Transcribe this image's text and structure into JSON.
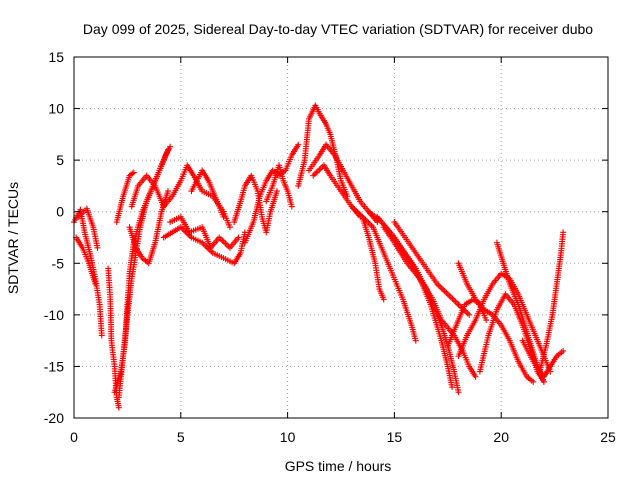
{
  "chart_data": {
    "type": "scatter",
    "title": "Day 099 of 2025, Sidereal Day-to-day VTEC variation (SDTVAR) for receiver dubo",
    "xlabel": "GPS time / hours",
    "ylabel": "SDTVAR / TECUs",
    "xlim": [
      0,
      25
    ],
    "ylim": [
      -20,
      15
    ],
    "xticks": [
      0,
      5,
      10,
      15,
      20,
      25
    ],
    "yticks": [
      -20,
      -15,
      -10,
      -5,
      0,
      5,
      10,
      15
    ],
    "grid": true,
    "marker": "plus",
    "series": [
      {
        "name": "SDTVAR",
        "color": "#ff0000",
        "tracks": [
          [
            [
              0.0,
              -1.0
            ],
            [
              0.3,
              0.2
            ],
            [
              0.5,
              -2.0
            ],
            [
              0.8,
              -4.5
            ],
            [
              1.0,
              -6.5
            ],
            [
              1.2,
              -9.0
            ],
            [
              1.3,
              -12.0
            ]
          ],
          [
            [
              0.2,
              -0.5
            ],
            [
              0.6,
              0.3
            ],
            [
              0.9,
              -1.5
            ],
            [
              1.1,
              -3.5
            ]
          ],
          [
            [
              0.1,
              -2.5
            ],
            [
              0.4,
              -3.5
            ],
            [
              0.7,
              -5.0
            ],
            [
              1.0,
              -7.0
            ]
          ],
          [
            [
              1.6,
              -5.5
            ],
            [
              1.7,
              -8.5
            ],
            [
              1.75,
              -12.5
            ],
            [
              1.9,
              -15.0
            ],
            [
              2.0,
              -18.0
            ],
            [
              2.1,
              -19.0
            ]
          ],
          [
            [
              1.9,
              -17.5
            ],
            [
              2.2,
              -15.5
            ],
            [
              2.4,
              -12.5
            ],
            [
              2.5,
              -9.0
            ],
            [
              2.6,
              -6.0
            ],
            [
              2.8,
              -3.0
            ],
            [
              3.2,
              0.0
            ],
            [
              3.6,
              2.0
            ],
            [
              4.0,
              4.0
            ],
            [
              4.3,
              5.5
            ],
            [
              4.5,
              6.3
            ]
          ],
          [
            [
              2.1,
              -18.0
            ],
            [
              2.3,
              -14.0
            ],
            [
              2.5,
              -10.0
            ],
            [
              2.7,
              -6.5
            ],
            [
              2.9,
              -4.0
            ],
            [
              3.1,
              -1.5
            ],
            [
              3.4,
              1.0
            ],
            [
              3.8,
              3.0
            ],
            [
              4.2,
              5.0
            ],
            [
              4.4,
              6.0
            ]
          ],
          [
            [
              2.0,
              -1.0
            ],
            [
              2.3,
              1.5
            ],
            [
              2.6,
              3.5
            ],
            [
              2.8,
              3.8
            ]
          ],
          [
            [
              2.6,
              -1.5
            ],
            [
              2.9,
              -3.5
            ],
            [
              3.2,
              -4.5
            ],
            [
              3.5,
              -5.0
            ],
            [
              3.8,
              -3.0
            ],
            [
              4.1,
              0.0
            ],
            [
              4.4,
              2.0
            ]
          ],
          [
            [
              2.7,
              0.5
            ],
            [
              3.0,
              2.5
            ],
            [
              3.4,
              3.5
            ],
            [
              3.8,
              2.5
            ],
            [
              4.2,
              0.5
            ],
            [
              4.6,
              1.5
            ],
            [
              5.0,
              3.0
            ],
            [
              5.3,
              4.5
            ],
            [
              5.6,
              3.5
            ],
            [
              6.0,
              2.0
            ],
            [
              6.5,
              1.5
            ],
            [
              7.0,
              0.0
            ],
            [
              7.3,
              -1.5
            ]
          ],
          [
            [
              4.2,
              -2.5
            ],
            [
              4.6,
              -2.0
            ],
            [
              5.0,
              -1.5
            ],
            [
              5.5,
              -2.5
            ],
            [
              6.0,
              -3.0
            ],
            [
              6.5,
              -4.0
            ],
            [
              7.0,
              -4.5
            ],
            [
              7.5,
              -5.0
            ],
            [
              7.8,
              -4.0
            ],
            [
              8.0,
              -2.0
            ]
          ],
          [
            [
              4.5,
              -1.0
            ],
            [
              5.0,
              -0.5
            ],
            [
              5.4,
              -2.0
            ],
            [
              6.0,
              -1.5
            ],
            [
              6.4,
              -3.5
            ],
            [
              6.8,
              -2.5
            ],
            [
              7.3,
              -3.5
            ],
            [
              7.7,
              -2.5
            ]
          ],
          [
            [
              5.5,
              2.0
            ],
            [
              6.0,
              4.0
            ],
            [
              6.3,
              3.0
            ],
            [
              6.7,
              1.0
            ],
            [
              7.0,
              -0.5
            ]
          ],
          [
            [
              7.5,
              -1.0
            ],
            [
              7.8,
              1.0
            ],
            [
              8.0,
              2.5
            ],
            [
              8.3,
              3.5
            ],
            [
              8.6,
              2.0
            ],
            [
              8.8,
              -0.5
            ],
            [
              9.0,
              -2.0
            ],
            [
              9.2,
              0.0
            ],
            [
              9.5,
              2.0
            ]
          ],
          [
            [
              8.0,
              -3.0
            ],
            [
              8.4,
              -1.0
            ],
            [
              8.7,
              1.5
            ],
            [
              9.0,
              3.0
            ],
            [
              9.3,
              4.0
            ],
            [
              9.6,
              3.5
            ],
            [
              9.9,
              4.0
            ],
            [
              10.2,
              5.5
            ],
            [
              10.5,
              6.5
            ]
          ],
          [
            [
              9.0,
              1.0
            ],
            [
              9.3,
              2.5
            ],
            [
              9.6,
              4.5
            ],
            [
              9.8,
              3.0
            ],
            [
              10.0,
              2.0
            ],
            [
              10.2,
              0.5
            ]
          ],
          [
            [
              10.5,
              2.5
            ],
            [
              10.8,
              5.0
            ],
            [
              11.0,
              9.0
            ],
            [
              11.3,
              10.3
            ],
            [
              11.5,
              9.5
            ],
            [
              11.8,
              8.5
            ],
            [
              12.0,
              7.5
            ],
            [
              12.3,
              5.0
            ],
            [
              12.5,
              3.0
            ],
            [
              12.8,
              1.5
            ]
          ],
          [
            [
              11.0,
              4.0
            ],
            [
              11.5,
              5.5
            ],
            [
              11.8,
              6.5
            ],
            [
              12.2,
              5.5
            ],
            [
              12.6,
              4.0
            ],
            [
              13.0,
              2.5
            ],
            [
              13.4,
              1.0
            ],
            [
              13.8,
              0.0
            ],
            [
              14.2,
              -1.0
            ]
          ],
          [
            [
              11.2,
              3.5
            ],
            [
              11.7,
              4.5
            ],
            [
              12.0,
              3.5
            ],
            [
              12.5,
              2.0
            ],
            [
              13.0,
              0.5
            ],
            [
              13.4,
              -0.5
            ]
          ],
          [
            [
              13.0,
              0.5
            ],
            [
              13.5,
              -0.5
            ],
            [
              13.8,
              -2.5
            ],
            [
              14.1,
              -5.0
            ],
            [
              14.3,
              -7.5
            ],
            [
              14.5,
              -8.5
            ]
          ],
          [
            [
              13.5,
              -0.5
            ],
            [
              14.0,
              -1.5
            ],
            [
              14.4,
              -3.5
            ],
            [
              14.8,
              -5.5
            ],
            [
              15.1,
              -7.0
            ],
            [
              15.4,
              -8.5
            ],
            [
              15.8,
              -11.0
            ],
            [
              16.0,
              -12.5
            ]
          ],
          [
            [
              13.8,
              0.0
            ],
            [
              14.4,
              -1.0
            ],
            [
              15.0,
              -2.5
            ],
            [
              15.5,
              -4.0
            ],
            [
              16.0,
              -5.5
            ],
            [
              16.5,
              -7.5
            ],
            [
              16.9,
              -9.5
            ],
            [
              17.2,
              -11.0
            ],
            [
              17.5,
              -13.0
            ],
            [
              17.8,
              -15.5
            ],
            [
              18.0,
              -17.5
            ]
          ],
          [
            [
              14.2,
              -0.5
            ],
            [
              14.8,
              -2.0
            ],
            [
              15.3,
              -3.5
            ],
            [
              15.8,
              -5.0
            ],
            [
              16.3,
              -7.0
            ],
            [
              16.7,
              -9.0
            ],
            [
              17.2,
              -12.5
            ],
            [
              17.5,
              -15.0
            ],
            [
              17.7,
              -17.0
            ]
          ],
          [
            [
              14.5,
              -1.5
            ],
            [
              15.0,
              -3.0
            ],
            [
              15.6,
              -5.0
            ],
            [
              16.2,
              -6.5
            ],
            [
              16.8,
              -8.5
            ],
            [
              17.2,
              -10.5
            ],
            [
              17.8,
              -12.0
            ],
            [
              18.2,
              -13.5
            ],
            [
              18.5,
              -15.0
            ],
            [
              18.8,
              -16.0
            ]
          ],
          [
            [
              15.0,
              -1.0
            ],
            [
              15.5,
              -2.5
            ],
            [
              16.0,
              -4.0
            ],
            [
              16.5,
              -5.5
            ],
            [
              17.0,
              -7.0
            ],
            [
              17.5,
              -8.0
            ],
            [
              18.0,
              -9.0
            ],
            [
              18.5,
              -10.0
            ]
          ],
          [
            [
              17.5,
              -13.0
            ],
            [
              17.9,
              -11.0
            ],
            [
              18.3,
              -9.0
            ],
            [
              18.7,
              -8.5
            ],
            [
              19.0,
              -9.0
            ],
            [
              19.3,
              -10.5
            ]
          ],
          [
            [
              18.0,
              -14.0
            ],
            [
              18.4,
              -12.0
            ],
            [
              18.8,
              -10.5
            ],
            [
              19.2,
              -8.5
            ],
            [
              19.6,
              -7.0
            ],
            [
              20.0,
              -6.0
            ],
            [
              20.4,
              -6.5
            ],
            [
              20.8,
              -8.0
            ],
            [
              21.2,
              -10.0
            ],
            [
              21.6,
              -12.0
            ],
            [
              22.0,
              -14.0
            ],
            [
              22.3,
              -15.5
            ]
          ],
          [
            [
              19.0,
              -15.5
            ],
            [
              19.4,
              -12.0
            ],
            [
              19.8,
              -9.5
            ],
            [
              20.2,
              -8.0
            ],
            [
              20.6,
              -9.0
            ],
            [
              21.0,
              -11.0
            ],
            [
              21.4,
              -13.5
            ],
            [
              21.7,
              -15.5
            ],
            [
              22.0,
              -16.5
            ]
          ],
          [
            [
              18.0,
              -5.0
            ],
            [
              18.4,
              -7.0
            ],
            [
              18.8,
              -8.5
            ],
            [
              19.2,
              -9.5
            ],
            [
              19.6,
              -10.0
            ],
            [
              20.0,
              -11.0
            ],
            [
              20.4,
              -12.5
            ],
            [
              20.8,
              -14.5
            ],
            [
              21.2,
              -16.0
            ],
            [
              21.5,
              -16.5
            ]
          ],
          [
            [
              19.8,
              -3.0
            ],
            [
              20.1,
              -5.0
            ],
            [
              20.4,
              -7.0
            ],
            [
              20.8,
              -9.0
            ],
            [
              21.1,
              -11.0
            ],
            [
              21.4,
              -13.0
            ],
            [
              21.7,
              -15.0
            ],
            [
              22.0,
              -16.5
            ]
          ],
          [
            [
              21.0,
              -12.5
            ],
            [
              21.5,
              -14.5
            ],
            [
              22.0,
              -16.0
            ],
            [
              22.3,
              -15.0
            ],
            [
              22.6,
              -14.0
            ],
            [
              22.9,
              -13.5
            ]
          ],
          [
            [
              21.8,
              -15.5
            ],
            [
              22.1,
              -13.0
            ],
            [
              22.4,
              -10.0
            ],
            [
              22.6,
              -7.0
            ],
            [
              22.8,
              -4.0
            ],
            [
              22.9,
              -2.0
            ]
          ]
        ]
      }
    ]
  }
}
